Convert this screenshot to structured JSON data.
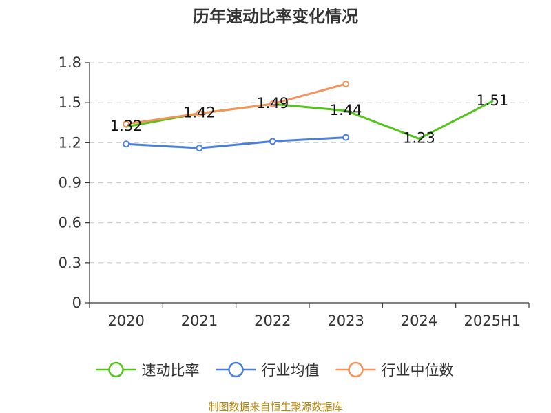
{
  "chart_data": {
    "type": "line",
    "title": "历年速动比率变化情况",
    "categories": [
      "2020",
      "2021",
      "2022",
      "2023",
      "2024",
      "2025H1"
    ],
    "ylim": [
      0,
      1.8
    ],
    "yticks": [
      "0",
      "0.3",
      "0.6",
      "0.9",
      "1.2",
      "1.5",
      "1.8"
    ],
    "grid": true,
    "legend_position": "bottom",
    "series": [
      {
        "name": "速动比率",
        "color": "#52c41a",
        "values": [
          1.32,
          1.42,
          1.49,
          1.44,
          1.23,
          1.51
        ],
        "labels": [
          "1.32",
          "1.42",
          "1.49",
          "1.44",
          "1.23",
          "1.51"
        ],
        "show_labels": true,
        "show_markers": false
      },
      {
        "name": "行业均值",
        "color": "#4a7fdc",
        "values": [
          1.19,
          1.16,
          1.21,
          1.24,
          null,
          null
        ],
        "show_labels": false,
        "show_markers": true
      },
      {
        "name": "行业中位数",
        "color": "#f4935b",
        "values": [
          1.34,
          1.42,
          1.49,
          1.64,
          null,
          null
        ],
        "show_labels": false,
        "show_markers": true
      }
    ],
    "source": "制图数据来自恒生聚源数据库"
  }
}
